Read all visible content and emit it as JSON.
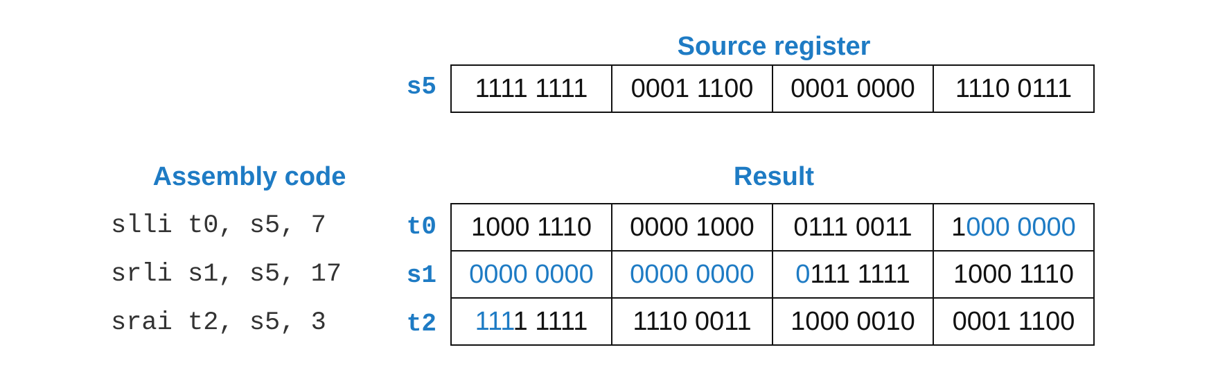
{
  "headings": {
    "source": "Source register",
    "result": "Result",
    "assembly": "Assembly code"
  },
  "colors": {
    "accent": "#1e7bc4",
    "text": "#111111",
    "code": "#333333"
  },
  "source": {
    "label": "s5",
    "bytes": [
      "1111 1111",
      "0001 1100",
      "0001 0000",
      "1110 0111"
    ]
  },
  "rows": [
    {
      "code": "slli t0, s5, 7",
      "label": "t0",
      "cells": [
        {
          "hi": "",
          "rest": "1000 1110"
        },
        {
          "hi": "",
          "rest": "0000 1000"
        },
        {
          "hi": "",
          "rest": "0111 0011"
        },
        {
          "pre": "1",
          "hi": "000 0000",
          "rest": ""
        }
      ]
    },
    {
      "code": "srli s1, s5, 17",
      "label": "s1",
      "cells": [
        {
          "hi": "0000 0000",
          "rest": ""
        },
        {
          "hi": "0000 0000",
          "rest": ""
        },
        {
          "hi": "0",
          "rest": "111 1111"
        },
        {
          "hi": "",
          "rest": "1000 1110"
        }
      ]
    },
    {
      "code": "srai t2, s5, 3",
      "label": "t2",
      "cells": [
        {
          "hi": "111",
          "rest": "1 1111"
        },
        {
          "hi": "",
          "rest": "1110 0011"
        },
        {
          "hi": "",
          "rest": "1000 0010"
        },
        {
          "hi": "",
          "rest": "0001 1100"
        }
      ]
    }
  ]
}
